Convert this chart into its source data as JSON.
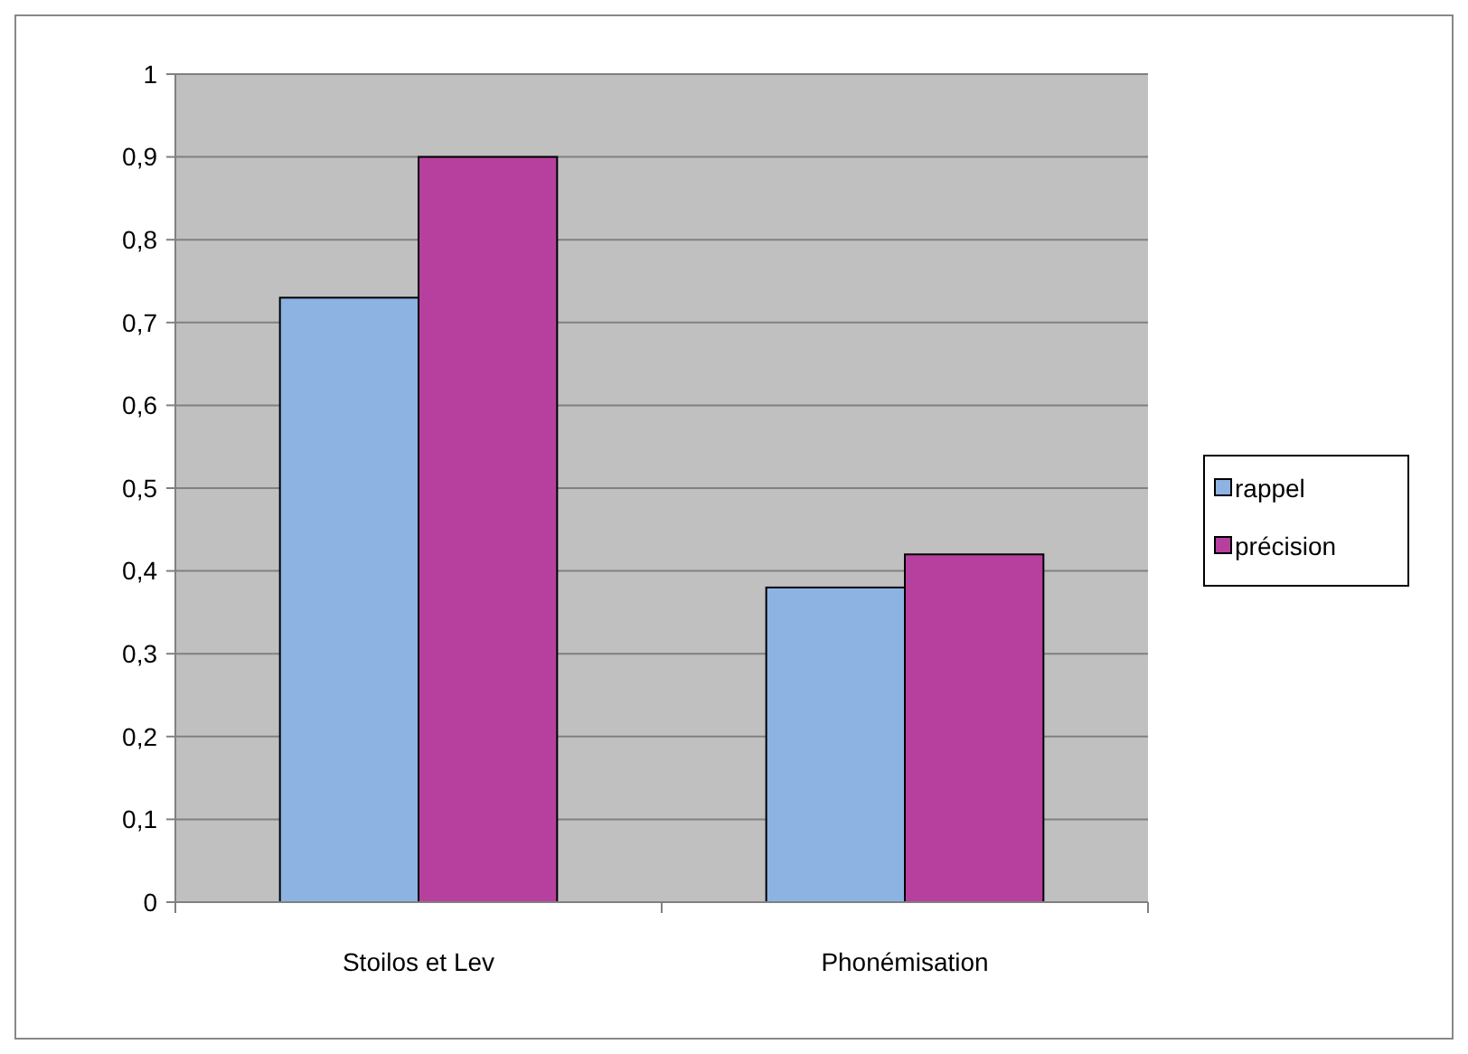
{
  "chart_data": {
    "type": "bar",
    "categories": [
      "Stoilos et Lev",
      "Phonémisation"
    ],
    "series": [
      {
        "name": "rappel",
        "color": "#8db3e2",
        "values": [
          0.73,
          0.38
        ]
      },
      {
        "name": "précision",
        "color": "#b7409f",
        "values": [
          0.9,
          0.42
        ]
      }
    ],
    "ylim": [
      0,
      1
    ],
    "yticks": [
      0,
      {
        "value": 0.1,
        "label": "0,1"
      },
      {
        "value": 0.2,
        "label": "0,2"
      },
      {
        "value": 0.3,
        "label": "0,3"
      },
      {
        "value": 0.4,
        "label": "0,4"
      },
      {
        "value": 0.5,
        "label": "0,5"
      },
      {
        "value": 0.6,
        "label": "0,6"
      },
      {
        "value": 0.7,
        "label": "0,7"
      },
      {
        "value": 0.8,
        "label": "0,8"
      },
      {
        "value": 0.9,
        "label": "0,9"
      },
      1
    ],
    "grid": "y",
    "legend": "right"
  }
}
